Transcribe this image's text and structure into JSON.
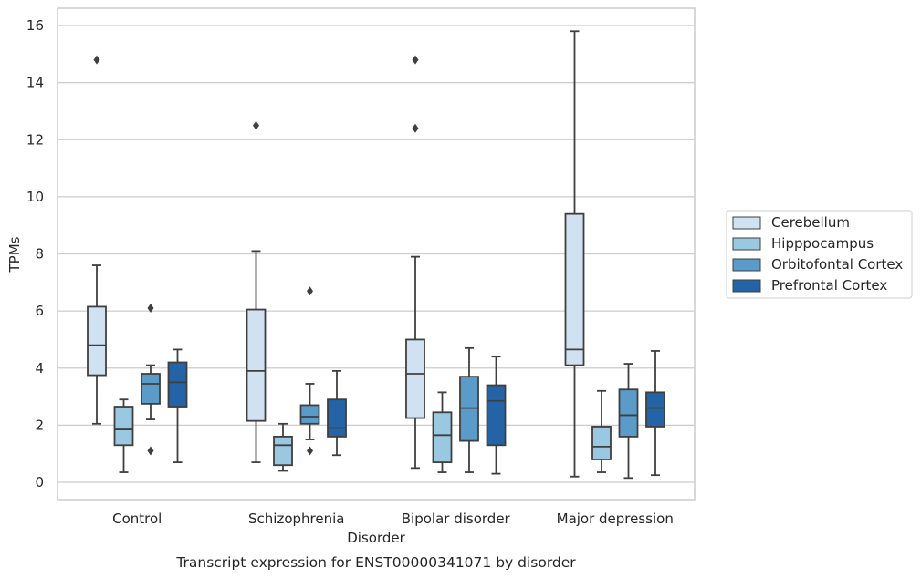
{
  "caption": "Transcript expression for ENST00000341071 by disorder",
  "chart_data": {
    "type": "boxplot",
    "xlabel": "Disorder",
    "ylabel": "TPMs",
    "ylim": [
      -0.6,
      16.6
    ],
    "yticks": [
      0,
      2,
      4,
      6,
      8,
      10,
      12,
      14,
      16
    ],
    "grid": "horizontal",
    "legend_placement": "right",
    "categories": [
      "Control",
      "Schizophrenia",
      "Bipolar disorder",
      "Major depression"
    ],
    "series": [
      {
        "name": "Cerebellum",
        "color": "#d0e1f2",
        "boxes": [
          {
            "whislo": 2.05,
            "q1": 3.75,
            "med": 4.8,
            "q3": 6.15,
            "whishi": 7.6,
            "fliers": [
              14.8
            ]
          },
          {
            "whislo": 0.7,
            "q1": 2.15,
            "med": 3.9,
            "q3": 6.05,
            "whishi": 8.1,
            "fliers": [
              12.5
            ]
          },
          {
            "whislo": 0.5,
            "q1": 2.25,
            "med": 3.8,
            "q3": 5.0,
            "whishi": 7.9,
            "fliers": [
              14.8,
              12.4
            ]
          },
          {
            "whislo": 0.2,
            "q1": 4.1,
            "med": 4.65,
            "q3": 9.4,
            "whishi": 15.8,
            "fliers": []
          }
        ]
      },
      {
        "name": "Hipppocampus",
        "color": "#9ac8e0",
        "boxes": [
          {
            "whislo": 0.35,
            "q1": 1.3,
            "med": 1.85,
            "q3": 2.65,
            "whishi": 2.9,
            "fliers": []
          },
          {
            "whislo": 0.4,
            "q1": 0.6,
            "med": 1.3,
            "q3": 1.6,
            "whishi": 2.05,
            "fliers": []
          },
          {
            "whislo": 0.35,
            "q1": 0.7,
            "med": 1.65,
            "q3": 2.45,
            "whishi": 3.15,
            "fliers": []
          },
          {
            "whislo": 0.35,
            "q1": 0.8,
            "med": 1.25,
            "q3": 1.95,
            "whishi": 3.2,
            "fliers": []
          }
        ]
      },
      {
        "name": "Orbitofontal Cortex",
        "color": "#5a9bc9",
        "boxes": [
          {
            "whislo": 2.2,
            "q1": 2.75,
            "med": 3.45,
            "q3": 3.8,
            "whishi": 4.1,
            "fliers": [
              6.1,
              1.1
            ]
          },
          {
            "whislo": 1.5,
            "q1": 2.05,
            "med": 2.3,
            "q3": 2.7,
            "whishi": 3.45,
            "fliers": [
              6.7,
              1.1
            ]
          },
          {
            "whislo": 0.35,
            "q1": 1.45,
            "med": 2.6,
            "q3": 3.7,
            "whishi": 4.7,
            "fliers": []
          },
          {
            "whislo": 0.15,
            "q1": 1.6,
            "med": 2.35,
            "q3": 3.25,
            "whishi": 4.15,
            "fliers": []
          }
        ]
      },
      {
        "name": "Prefrontal Cortex",
        "color": "#2464a6",
        "boxes": [
          {
            "whislo": 0.7,
            "q1": 2.65,
            "med": 3.5,
            "q3": 4.2,
            "whishi": 4.65,
            "fliers": []
          },
          {
            "whislo": 0.95,
            "q1": 1.6,
            "med": 1.9,
            "q3": 2.9,
            "whishi": 3.9,
            "fliers": []
          },
          {
            "whislo": 0.3,
            "q1": 1.3,
            "med": 2.85,
            "q3": 3.4,
            "whishi": 4.4,
            "fliers": []
          },
          {
            "whislo": 0.25,
            "q1": 1.95,
            "med": 2.6,
            "q3": 3.15,
            "whishi": 4.6,
            "fliers": []
          }
        ]
      }
    ]
  }
}
